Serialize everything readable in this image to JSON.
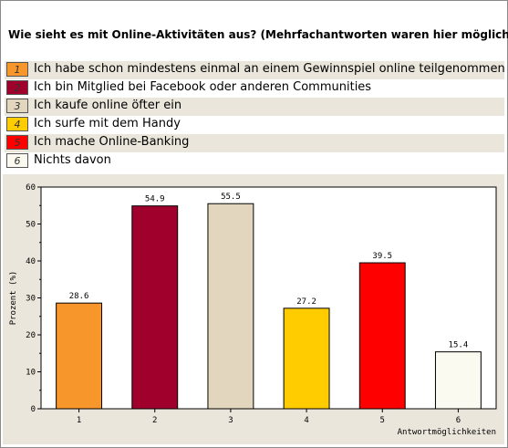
{
  "question": "Wie sieht es mit Online-Aktivitäten aus? (Mehrfachantworten waren hier möglich)",
  "legend": [
    {
      "num": "1",
      "label": "Ich habe schon mindestens einmal an einem Gewinnspiel online teilgenommen",
      "color": "#f7962a"
    },
    {
      "num": "2",
      "label": "Ich bin Mitglied bei Facebook oder anderen Communities",
      "color": "#a0002c"
    },
    {
      "num": "3",
      "label": "Ich kaufe online öfter ein",
      "color": "#e3d6be"
    },
    {
      "num": "4",
      "label": "Ich surfe mit dem Handy",
      "color": "#ffcc00"
    },
    {
      "num": "5",
      "label": "Ich mache Online-Banking",
      "color": "#ff0000"
    },
    {
      "num": "6",
      "label": "Nichts davon",
      "color": "#fafaf0"
    }
  ],
  "chart_data": {
    "type": "bar",
    "categories": [
      "1",
      "2",
      "3",
      "4",
      "5",
      "6"
    ],
    "values": [
      28.6,
      54.9,
      55.5,
      27.2,
      39.5,
      15.4
    ],
    "value_labels": [
      "28.6",
      "54.9",
      "55.5",
      "27.2",
      "39.5",
      "15.4"
    ],
    "colors": [
      "#f7962a",
      "#a0002c",
      "#e3d6be",
      "#ffcc00",
      "#ff0000",
      "#fafaf0"
    ],
    "xlabel": "Antwortmöglichkeiten",
    "ylabel": "Prozent (%)",
    "ylim": [
      0,
      60
    ],
    "yticks": [
      0,
      10,
      20,
      30,
      40,
      50,
      60
    ],
    "grid": false
  }
}
